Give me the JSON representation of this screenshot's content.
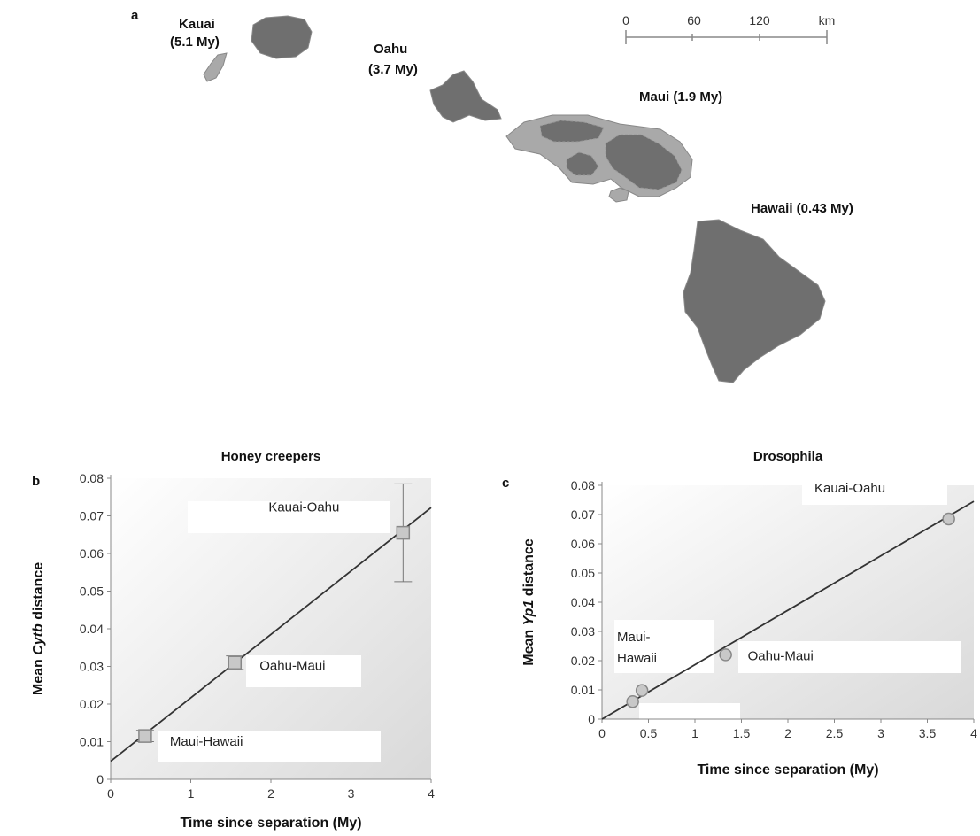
{
  "panel_a": {
    "letter": "a",
    "islands": {
      "kauai": {
        "name": "Kauai",
        "age": "(5.1 My)"
      },
      "oahu": {
        "name": "Oahu",
        "age": "(3.7 My)"
      },
      "maui": "Maui (1.9 My)",
      "hawaii": "Hawaii (0.43 My)"
    },
    "scale_bar": {
      "ticks": [
        "0",
        "60",
        "120"
      ],
      "unit": "km"
    }
  },
  "chart_data": [
    {
      "panel": "b",
      "type": "scatter",
      "title": "Honey creepers",
      "xlabel": "Time since separation (My)",
      "ylabel_prefix": "Mean ",
      "ylabel_gene": "Cytb",
      "ylabel_suffix": " distance",
      "xlim": [
        0,
        4
      ],
      "ylim": [
        0,
        0.08
      ],
      "xticks": [
        "0",
        "1",
        "2",
        "3",
        "4"
      ],
      "yticks": [
        "0",
        "0.01",
        "0.02",
        "0.03",
        "0.04",
        "0.05",
        "0.06",
        "0.07",
        "0.08"
      ],
      "marker": "square",
      "points": [
        {
          "label": "Maui-Hawaii",
          "x": 0.43,
          "y": 0.0115,
          "err": 0.0015
        },
        {
          "label": "Oahu-Maui",
          "x": 1.55,
          "y": 0.031,
          "err": 0.0018
        },
        {
          "label": "Kauai-Oahu",
          "x": 3.65,
          "y": 0.0655,
          "err": 0.013
        }
      ],
      "fit_line": {
        "x": [
          0,
          4
        ],
        "y": [
          0.0048,
          0.0722
        ]
      }
    },
    {
      "panel": "c",
      "type": "scatter",
      "title": "Drosophila",
      "xlabel": "Time since separation (My)",
      "ylabel_prefix": "Mean ",
      "ylabel_gene": "Yp1",
      "ylabel_suffix": " distance",
      "xlim": [
        0,
        4
      ],
      "ylim": [
        0,
        0.08
      ],
      "xticks": [
        "0",
        "0.5",
        "1",
        "1.5",
        "2",
        "2.5",
        "3",
        "3.5",
        "4"
      ],
      "yticks": [
        "0",
        "0.01",
        "0.02",
        "0.03",
        "0.04",
        "0.05",
        "0.06",
        "0.07",
        "0.08"
      ],
      "marker": "circle",
      "points": [
        {
          "label": "",
          "x": 0.33,
          "y": 0.006
        },
        {
          "label": "Maui-Hawaii",
          "x": 0.43,
          "y": 0.0098
        },
        {
          "label": "Oahu-Maui",
          "x": 1.33,
          "y": 0.022
        },
        {
          "label": "Kauai-Oahu",
          "x": 3.73,
          "y": 0.0685
        }
      ],
      "fit_line": {
        "x": [
          0,
          4
        ],
        "y": [
          0,
          0.0745
        ]
      }
    }
  ]
}
